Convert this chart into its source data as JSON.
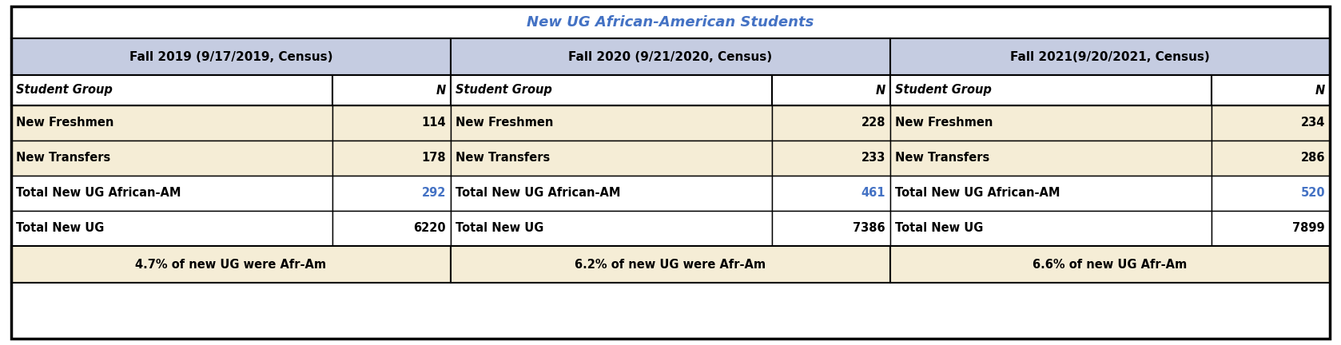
{
  "title": "New UG African-American Students",
  "title_color": "#4472C4",
  "col_headers": [
    "Fall 2019 (9/17/2019, Census)",
    "Fall 2020 (9/21/2020, Census)",
    "Fall 2021(9/20/2021, Census)"
  ],
  "col_header_bg": "#C5CCE1",
  "subheader_bg": "#FFFFFF",
  "data_rows": [
    [
      "New Freshmen",
      "114",
      "New Freshmen",
      "228",
      "New Freshmen",
      "234"
    ],
    [
      "New Transfers",
      "178",
      "New Transfers",
      "233",
      "New Transfers",
      "286"
    ],
    [
      "Total New UG African-AM",
      "292",
      "Total New UG African-AM",
      "461",
      "Total New UG African-AM",
      "520"
    ],
    [
      "Total New UG",
      "6220",
      "Total New UG",
      "7386",
      "Total New UG",
      "7899"
    ]
  ],
  "footer_row": [
    "4.7% of new UG were Afr-Am",
    "6.2% of new UG were Afr-Am",
    "6.6% of new UG Afr-Am"
  ],
  "highlight_values": [
    "292",
    "461",
    "520"
  ],
  "highlight_color": "#4472C4",
  "data_bg_tan": "#F5EDD6",
  "data_bg_white": "#FFFFFF",
  "title_bg": "#FFFFFF",
  "border_color": "#000000",
  "text_color": "#000000",
  "fig_w": 16.78,
  "fig_h": 4.32,
  "dpi": 100
}
